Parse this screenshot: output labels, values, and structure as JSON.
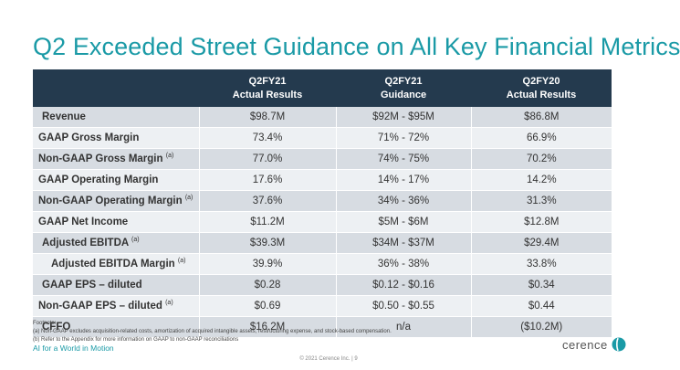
{
  "title": "Q2 Exceeded Street Guidance on All Key Financial Metrics",
  "columns": [
    {
      "line1": "Q2FY21",
      "line2": "Actual Results"
    },
    {
      "line1": "Q2FY21",
      "line2": "Guidance"
    },
    {
      "line1": "Q2FY20",
      "line2": "Actual Results"
    }
  ],
  "rows": [
    {
      "label": "Revenue",
      "note": "",
      "v1": "$98.7M",
      "v2": "$92M - $95M",
      "v3": "$86.8M"
    },
    {
      "label": "GAAP Gross Margin",
      "note": "",
      "v1": "73.4%",
      "v2": "71% - 72%",
      "v3": "66.9%"
    },
    {
      "label": "Non-GAAP Gross Margin",
      "note": "(a)",
      "v1": "77.0%",
      "v2": "74% - 75%",
      "v3": "70.2%"
    },
    {
      "label": "GAAP Operating Margin",
      "note": "",
      "v1": "17.6%",
      "v2": "14% - 17%",
      "v3": "14.2%"
    },
    {
      "label": "Non-GAAP Operating Margin",
      "note": "(a)",
      "v1": "37.6%",
      "v2": "34% - 36%",
      "v3": "31.3%"
    },
    {
      "label": "GAAP Net Income",
      "note": "",
      "v1": "$11.2M",
      "v2": "$5M - $6M",
      "v3": "$12.8M"
    },
    {
      "label": "Adjusted EBITDA",
      "note": "(a)",
      "v1": "$39.3M",
      "v2": "$34M - $37M",
      "v3": "$29.4M"
    },
    {
      "label": "Adjusted EBITDA Margin",
      "note": "(a)",
      "v1": "39.9%",
      "v2": "36% - 38%",
      "v3": "33.8%"
    },
    {
      "label": "GAAP EPS – diluted",
      "note": "",
      "v1": "$0.28",
      "v2": "$0.12 - $0.16",
      "v3": "$0.34"
    },
    {
      "label": "Non-GAAP EPS – diluted",
      "note": "(a)",
      "v1": "$0.69",
      "v2": "$0.50 - $0.55",
      "v3": "$0.44"
    },
    {
      "label": "CFFO",
      "note": "",
      "v1": "$16.2M",
      "v2": "n/a",
      "v3": "($10.2M)"
    }
  ],
  "footnotes": {
    "heading": "Footnote:",
    "a": "(a)   Non-GAAP excludes acquisition-related costs, amortization of acquired intangible assets, restructuring expense, and stock-based compensation.",
    "b": "(b)   Refer to the Appendix for more information on GAAP to non-GAAP reconciliations"
  },
  "tagline": "AI for a World in Motion",
  "copyright": "© 2021 Cerence Inc.  |  9",
  "logo": {
    "text": "cerence",
    "icon": "cerence-logo-icon",
    "color": "#1a9aa6"
  }
}
